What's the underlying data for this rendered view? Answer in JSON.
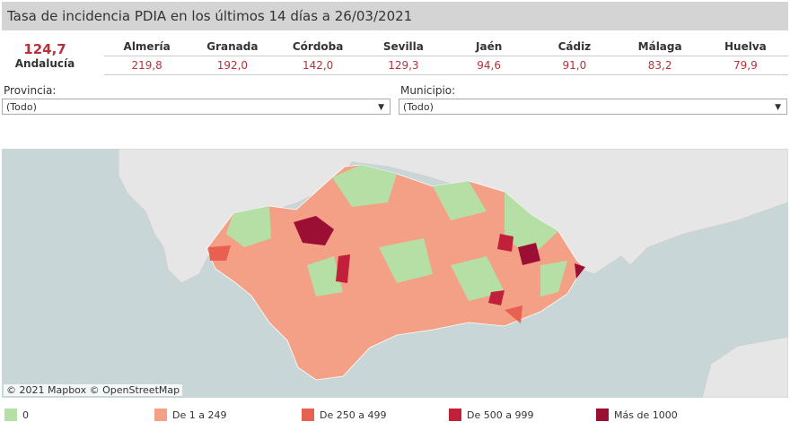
{
  "title": "Tasa de incidencia PDIA en los últimos 14 días a 26/03/2021",
  "total": {
    "value": "124,7",
    "label": "Andalucía"
  },
  "provinces": [
    {
      "name": "Almería",
      "value": "219,8"
    },
    {
      "name": "Granada",
      "value": "192,0"
    },
    {
      "name": "Córdoba",
      "value": "142,0"
    },
    {
      "name": "Sevilla",
      "value": "129,3"
    },
    {
      "name": "Jaén",
      "value": "94,6"
    },
    {
      "name": "Cádiz",
      "value": "91,0"
    },
    {
      "name": "Málaga",
      "value": "83,2"
    },
    {
      "name": "Huelva",
      "value": "79,9"
    }
  ],
  "filters": {
    "provincia": {
      "label": "Provincia:",
      "value": "(Todo)"
    },
    "municipio": {
      "label": "Municipio:",
      "value": "(Todo)"
    }
  },
  "map": {
    "attribution": "© 2021 Mapbox  © OpenStreetMap"
  },
  "legend": [
    {
      "label": "0",
      "color": "#b6dfa6"
    },
    {
      "label": "De 1 a 249",
      "color": "#f4a087"
    },
    {
      "label": "De 250 a 499",
      "color": "#e8604f"
    },
    {
      "label": "De 500 a 999",
      "color": "#c21f3a"
    },
    {
      "label": "Más de 1000",
      "color": "#9c0f35"
    }
  ]
}
